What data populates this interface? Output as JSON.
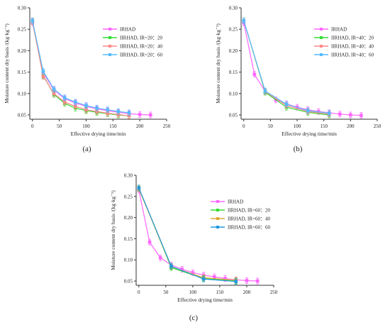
{
  "chart_data": [
    {
      "type": "line",
      "panel_label": "(a)",
      "xlabel": "Effective drying time/min",
      "ylabel": "Moisture content dry basis /(kg·kg⁻¹)",
      "xlim": [
        -5,
        250
      ],
      "ylim": [
        0.04,
        0.3
      ],
      "xticks": [
        0,
        50,
        100,
        150,
        200,
        250
      ],
      "yticks": [
        0.05,
        0.1,
        0.15,
        0.2,
        0.25,
        0.3
      ],
      "ytick_labels": [
        "0.05",
        "0.10",
        "0.15",
        "0.20",
        "0.25",
        "0.30"
      ],
      "legend_position": "right",
      "series": [
        {
          "name": "IRHAD",
          "color": "#ff66ff",
          "x": [
            0,
            20,
            40,
            60,
            80,
            100,
            120,
            140,
            160,
            180,
            200,
            220
          ],
          "y": [
            0.265,
            0.148,
            0.108,
            0.088,
            0.078,
            0.07,
            0.064,
            0.06,
            0.056,
            0.053,
            0.051,
            0.05
          ]
        },
        {
          "name": "IIRHAD, IR=20：20",
          "color": "#33dd33",
          "x": [
            0,
            20,
            40,
            60,
            80,
            100,
            120,
            140,
            160,
            180
          ],
          "y": [
            0.268,
            0.142,
            0.098,
            0.077,
            0.066,
            0.06,
            0.056,
            0.053,
            0.05,
            0.048
          ]
        },
        {
          "name": "IIRHAD, IR=20：40",
          "color": "#ff8888",
          "x": [
            0,
            20,
            40,
            60,
            80,
            100,
            120,
            140,
            160,
            180
          ],
          "y": [
            0.268,
            0.14,
            0.1,
            0.08,
            0.07,
            0.062,
            0.058,
            0.054,
            0.051,
            0.048
          ]
        },
        {
          "name": "IIRHAD, IR=20：60",
          "color": "#55bbff",
          "x": [
            0,
            20,
            40,
            60,
            80,
            100,
            120,
            140,
            160,
            180
          ],
          "y": [
            0.27,
            0.152,
            0.11,
            0.09,
            0.08,
            0.072,
            0.066,
            0.062,
            0.058,
            0.055
          ]
        }
      ]
    },
    {
      "type": "line",
      "panel_label": "(b)",
      "xlabel": "Effective drying time/min",
      "ylabel": "Moisture content dry basis /(kg·kg⁻¹)",
      "xlim": [
        -5,
        250
      ],
      "ylim": [
        0.04,
        0.3
      ],
      "xticks": [
        0,
        50,
        100,
        150,
        200,
        250
      ],
      "yticks": [
        0.05,
        0.1,
        0.15,
        0.2,
        0.25,
        0.3
      ],
      "ytick_labels": [
        "0.05",
        "0.10",
        "0.15",
        "0.20",
        "0.25",
        "0.30"
      ],
      "legend_position": "right",
      "series": [
        {
          "name": "IRHAD",
          "color": "#ff66ff",
          "x": [
            0,
            20,
            40,
            60,
            80,
            100,
            120,
            140,
            160,
            180,
            200,
            220
          ],
          "y": [
            0.265,
            0.145,
            0.105,
            0.085,
            0.076,
            0.068,
            0.062,
            0.058,
            0.055,
            0.052,
            0.05,
            0.049
          ]
        },
        {
          "name": "IIRHAD, IR=40：20",
          "color": "#33dd33",
          "x": [
            0,
            40,
            80,
            120,
            160
          ],
          "y": [
            0.27,
            0.103,
            0.068,
            0.056,
            0.05
          ]
        },
        {
          "name": "IIRHAD, IR=40：40",
          "color": "#ff8888",
          "x": [
            0,
            40,
            80,
            120,
            160
          ],
          "y": [
            0.27,
            0.105,
            0.072,
            0.058,
            0.052
          ]
        },
        {
          "name": "IIRHAD, IR=40：60",
          "color": "#55bbff",
          "x": [
            0,
            40,
            80,
            120,
            160
          ],
          "y": [
            0.27,
            0.106,
            0.075,
            0.06,
            0.054
          ]
        }
      ]
    },
    {
      "type": "line",
      "panel_label": "(c)",
      "xlabel": "Effective drying time/min",
      "ylabel": "Moisture content dry basis /(kg·kg⁻¹)",
      "xlim": [
        -5,
        250
      ],
      "ylim": [
        0.04,
        0.3
      ],
      "xticks": [
        0,
        50,
        100,
        150,
        200,
        250
      ],
      "yticks": [
        0.05,
        0.1,
        0.15,
        0.2,
        0.25,
        0.3
      ],
      "ytick_labels": [
        "0.05",
        "0.10",
        "0.15",
        "0.20",
        "0.25",
        "0.30"
      ],
      "legend_position": "right",
      "series": [
        {
          "name": "IRHAD",
          "color": "#ff66ff",
          "x": [
            0,
            20,
            40,
            60,
            80,
            100,
            120,
            140,
            160,
            180,
            200,
            220
          ],
          "y": [
            0.265,
            0.142,
            0.105,
            0.088,
            0.078,
            0.07,
            0.064,
            0.06,
            0.056,
            0.053,
            0.051,
            0.05
          ]
        },
        {
          "name": "IIRHAD, IR=60：20",
          "color": "#33dd33",
          "x": [
            0,
            60,
            120,
            180
          ],
          "y": [
            0.27,
            0.082,
            0.056,
            0.05
          ]
        },
        {
          "name": "IIRHAD, IR=60：40",
          "color": "#ddaa33",
          "x": [
            0,
            60,
            120,
            180
          ],
          "y": [
            0.268,
            0.084,
            0.058,
            0.052
          ]
        },
        {
          "name": "IIRHAD, IR=60：60",
          "color": "#2299dd",
          "x": [
            0,
            60,
            120,
            180
          ],
          "y": [
            0.27,
            0.085,
            0.055,
            0.049
          ]
        }
      ]
    }
  ]
}
